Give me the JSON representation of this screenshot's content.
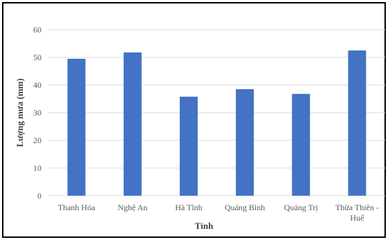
{
  "chart_data": {
    "type": "bar",
    "categories": [
      [
        "Thanh Hóa"
      ],
      [
        "Nghệ An"
      ],
      [
        "Hà Tĩnh"
      ],
      [
        "Quảng Bình"
      ],
      [
        "Quảng Trị"
      ],
      [
        "Thừa Thiên -",
        "Huế"
      ]
    ],
    "values": [
      49.5,
      51.8,
      35.8,
      38.5,
      36.8,
      52.5
    ],
    "xlabel": "Tỉnh",
    "ylabel": "Lượng mưa (mm)",
    "ylim": [
      0,
      60
    ],
    "yticks": [
      0,
      10,
      20,
      30,
      40,
      50,
      60
    ],
    "grid": true,
    "bar_color": "#4472C4",
    "grid_color": "#D9D9D9"
  }
}
